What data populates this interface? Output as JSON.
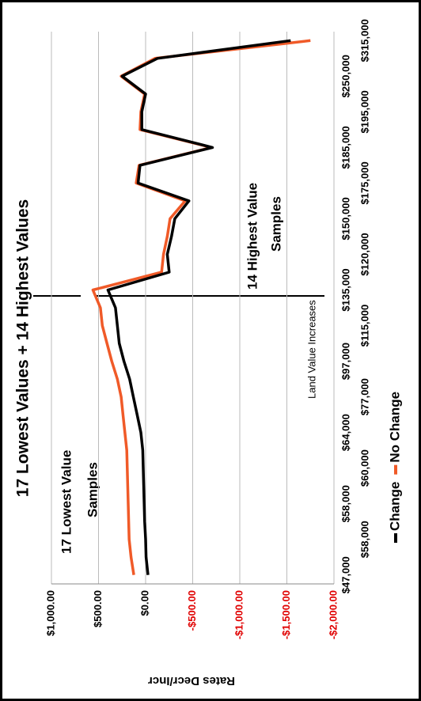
{
  "chart_data": {
    "type": "line",
    "title": "17 Lowest Values + 14 Highest Values",
    "y_label": "Rates Decr/Incr",
    "categories": [
      "$47,000",
      null,
      "$58,000",
      null,
      "$58,000",
      null,
      "$60,000",
      null,
      "$64,000",
      null,
      "$77,000",
      null,
      "$97,000",
      null,
      "$115,000",
      null,
      "$135,000",
      null,
      "$120,000",
      null,
      "$150,000",
      null,
      "$175,000",
      null,
      "$185,000",
      null,
      "$195,000",
      null,
      "$250,000",
      null,
      "$315,000"
    ],
    "series": [
      {
        "name": "Change",
        "color": "#000000",
        "values": [
          -25,
          -5,
          0,
          10,
          15,
          20,
          25,
          30,
          50,
          90,
          130,
          170,
          230,
          280,
          300,
          320,
          400,
          -250,
          -230,
          -275,
          -310,
          -460,
          80,
          60,
          -710,
          40,
          40,
          0,
          250,
          -125,
          -1540
        ]
      },
      {
        "name": "No Change",
        "color": "#f05a28",
        "values": [
          125,
          155,
          175,
          180,
          185,
          190,
          195,
          200,
          220,
          240,
          260,
          300,
          360,
          410,
          460,
          480,
          560,
          -170,
          -190,
          -230,
          -260,
          -420,
          100,
          70,
          -700,
          60,
          50,
          10,
          260,
          -100,
          -1750
        ]
      }
    ],
    "ylim": [
      -2000,
      1000
    ],
    "yticks": [
      {
        "value": 1000,
        "label": "$1,000.00"
      },
      {
        "value": 500,
        "label": "$500.00"
      },
      {
        "value": 0,
        "label": "$0.00"
      },
      {
        "value": -500,
        "label": "-$500.00"
      },
      {
        "value": -1000,
        "label": "-$1,000.00"
      },
      {
        "value": -1500,
        "label": "-$1,500.00"
      },
      {
        "value": -2000,
        "label": "-$2,000.00"
      }
    ],
    "negative_tick_color": "#e00000",
    "grid": true,
    "legend": "bottom",
    "annotations": [
      "17 Lowest Value",
      "Samples",
      "14 Highest Value",
      "Samples",
      "Land Value Increases"
    ]
  }
}
